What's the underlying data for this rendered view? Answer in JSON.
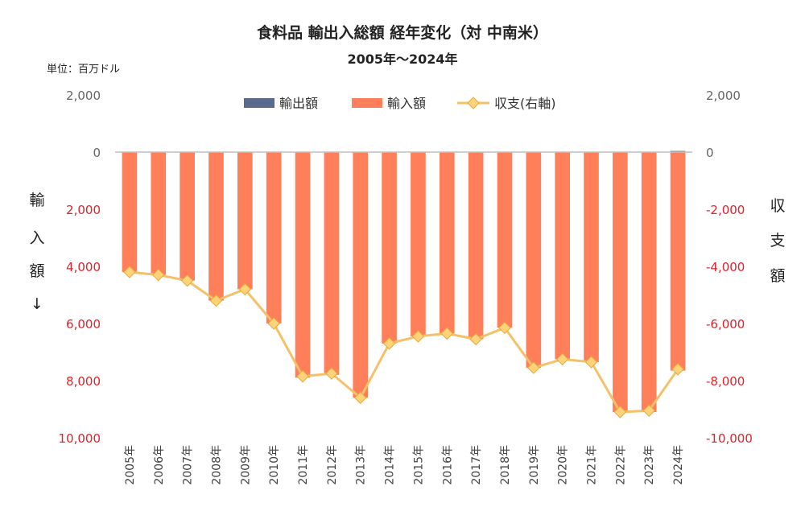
{
  "chart_data": {
    "type": "bar",
    "title": "食料品 輸出入総額 経年変化（対 中南米）",
    "subtitle": "2005年～2024年",
    "unit_label": "単位：百万ドル",
    "ylabel_left_chars": [
      "輸",
      "入",
      "額",
      "↓"
    ],
    "ylabel_right_chars": [
      "収",
      "支",
      "額"
    ],
    "legend": [
      "輸出額",
      "輸入額",
      "収支(右軸)"
    ],
    "legend_position": "top",
    "categories": [
      "2005年",
      "2006年",
      "2007年",
      "2008年",
      "2009年",
      "2010年",
      "2011年",
      "2012年",
      "2013年",
      "2014年",
      "2015年",
      "2016年",
      "2017年",
      "2018年",
      "2019年",
      "2020年",
      "2021年",
      "2022年",
      "2023年",
      "2024年"
    ],
    "series": [
      {
        "name": "輸出額",
        "type": "bar",
        "axis": "left",
        "color": "#5A6A8C",
        "values": [
          0,
          0,
          0,
          0,
          0,
          0,
          0,
          0,
          0,
          0,
          0,
          0,
          0,
          0,
          0,
          0,
          0,
          0,
          0,
          40
        ]
      },
      {
        "name": "輸入額",
        "type": "bar",
        "axis": "left",
        "color": "#FF7F5A",
        "values": [
          4200,
          4300,
          4500,
          5200,
          4800,
          6000,
          7900,
          7800,
          8600,
          6700,
          6450,
          6350,
          6550,
          6150,
          7550,
          7250,
          7350,
          9100,
          9100,
          7650
        ]
      },
      {
        "name": "収支(右軸)",
        "type": "line",
        "axis": "right",
        "color": "#F5C06A",
        "values": [
          -4200,
          -4300,
          -4500,
          -5200,
          -4800,
          -6000,
          -7850,
          -7750,
          -8600,
          -6700,
          -6450,
          -6350,
          -6550,
          -6150,
          -7550,
          -7250,
          -7350,
          -9100,
          -9050,
          -7600
        ]
      }
    ],
    "left_axis": {
      "ticks": [
        "2,000",
        "0",
        "2,000",
        "4,000",
        "6,000",
        "8,000",
        "10,000"
      ],
      "tick_values": [
        -2000,
        0,
        2000,
        4000,
        6000,
        8000,
        10000
      ],
      "ylim": [
        -2000,
        10000
      ],
      "inverted": true
    },
    "right_axis": {
      "ticks": [
        "2,000",
        "0",
        "-2,000",
        "-4,000",
        "-6,000",
        "-8,000",
        "-10,000"
      ],
      "tick_values": [
        2000,
        0,
        -2000,
        -4000,
        -6000,
        -8000,
        -10000
      ],
      "ylim": [
        -10000,
        2000
      ]
    },
    "grid": false,
    "colors": {
      "negative_tick": "#E8202A",
      "positive_tick": "#666666",
      "axis_line": "#BFBFBF",
      "marker_stroke": "#E8A93A",
      "marker_fill": "#FFD37A"
    }
  }
}
